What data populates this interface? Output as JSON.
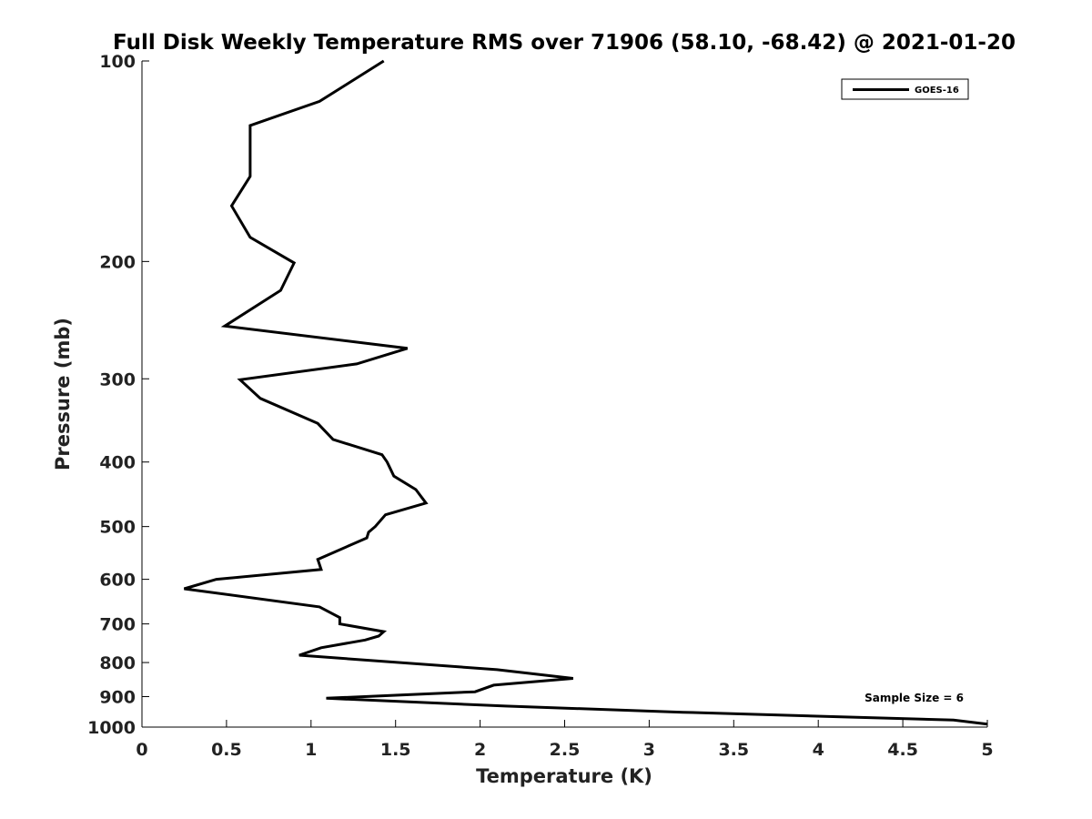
{
  "chart_data": {
    "type": "line",
    "title": "Full Disk Weekly Temperature RMS over 71906 (58.10, -68.42) @ 2021-01-20",
    "xlabel": "Temperature (K)",
    "ylabel": "Pressure (mb)",
    "xlim": [
      0,
      5
    ],
    "ylim": [
      1000,
      100
    ],
    "y_scale": "log",
    "y_reversed": true,
    "grid": false,
    "legend_position": "top-right",
    "x_ticks": [
      0,
      0.5,
      1,
      1.5,
      2,
      2.5,
      3,
      3.5,
      4,
      4.5,
      5
    ],
    "x_tick_labels": [
      "0",
      "0.5",
      "1",
      "1.5",
      "2",
      "2.5",
      "3",
      "3.5",
      "4",
      "4.5",
      "5"
    ],
    "y_ticks": [
      100,
      200,
      300,
      400,
      500,
      600,
      700,
      800,
      900,
      1000
    ],
    "y_tick_labels": [
      "100",
      "200",
      "300",
      "400",
      "500",
      "600",
      "700",
      "800",
      "900",
      "1000"
    ],
    "series": [
      {
        "name": "GOES-16",
        "color": "#000000",
        "x": [
          1.43,
          1.05,
          0.64,
          0.64,
          0.64,
          0.53,
          0.64,
          0.9,
          0.82,
          0.49,
          1.57,
          1.27,
          0.58,
          0.7,
          1.04,
          1.13,
          1.42,
          1.45,
          1.49,
          1.62,
          1.68,
          1.44,
          1.38,
          1.34,
          1.33,
          1.04,
          1.06,
          0.44,
          0.25,
          1.05,
          1.17,
          1.17,
          1.43,
          1.4,
          1.32,
          1.06,
          0.93,
          2.1,
          2.55,
          2.08,
          1.97,
          1.09,
          2.15,
          3.2,
          4.8,
          5.0
        ],
        "y": [
          100,
          115,
          125,
          142,
          149,
          165,
          184,
          201,
          221,
          250,
          270,
          285,
          301,
          321,
          350,
          370,
          390,
          400,
          420,
          440,
          461,
          480,
          500,
          510,
          520,
          560,
          580,
          600,
          620,
          660,
          685,
          700,
          719,
          730,
          740,
          760,
          780,
          820,
          845,
          865,
          885,
          905,
          930,
          950,
          976,
          990
        ]
      }
    ],
    "annotations": [
      "Sample Size = 6"
    ]
  }
}
